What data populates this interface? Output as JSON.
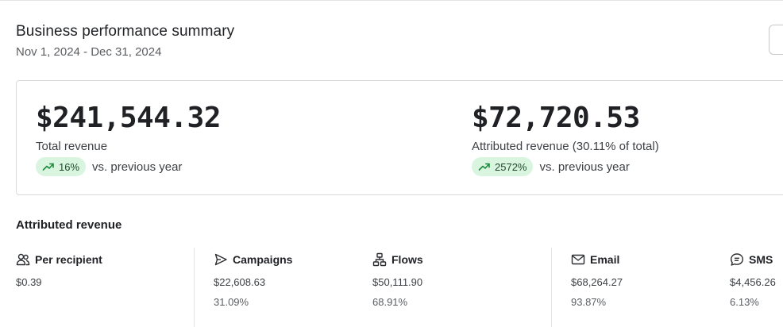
{
  "header": {
    "title": "Business performance summary",
    "date_range": "Nov 1, 2024 - Dec 31, 2024"
  },
  "summary": {
    "total": {
      "value": "$241,544.32",
      "label": "Total revenue",
      "change": "16%",
      "change_suffix": "vs. previous year"
    },
    "attributed": {
      "value": "$72,720.53",
      "label": "Attributed revenue (30.11% of total)",
      "change": "2572%",
      "change_suffix": "vs. previous year"
    }
  },
  "attributed_section": {
    "title": "Attributed revenue",
    "stats": [
      {
        "label": "Per recipient",
        "value": "$0.39",
        "icon": "people-icon"
      },
      {
        "label": "Campaigns",
        "value": "$22,608.63",
        "percent": "31.09%",
        "icon": "send-icon"
      },
      {
        "label": "Flows",
        "value": "$50,111.90",
        "percent": "68.91%",
        "icon": "flow-icon"
      },
      {
        "label": "Email",
        "value": "$68,264.27",
        "percent": "93.87%",
        "icon": "mail-icon"
      },
      {
        "label": "SMS",
        "value": "$4,456.26",
        "percent": "6.13%",
        "icon": "sms-icon"
      }
    ]
  },
  "colors": {
    "badge_bg": "#d9f5e0",
    "badge_icon": "#1e8a3e",
    "border": "#d9d9d9"
  }
}
